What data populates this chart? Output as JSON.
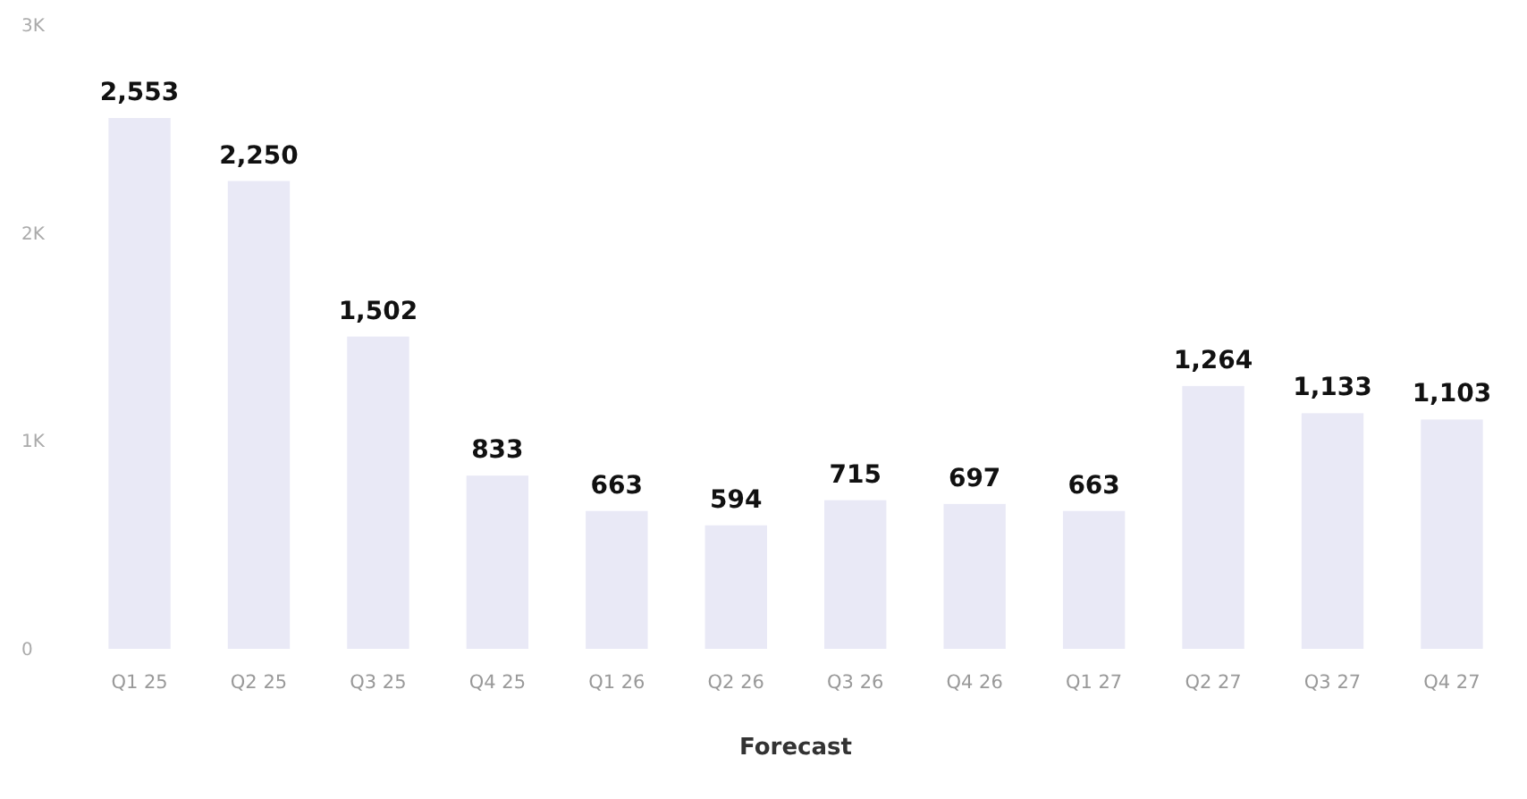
{
  "chart_data": {
    "type": "bar",
    "xlabel": "Forecast",
    "categories": [
      "Q1 25",
      "Q2 25",
      "Q3 25",
      "Q4 25",
      "Q1 26",
      "Q2 26",
      "Q3 26",
      "Q4 26",
      "Q1 27",
      "Q2 27",
      "Q3 27",
      "Q4 27"
    ],
    "values": [
      2553,
      2250,
      1502,
      833,
      663,
      594,
      715,
      697,
      663,
      1264,
      1133,
      1103
    ],
    "value_labels": [
      "2,553",
      "2,250",
      "1,502",
      "833",
      "663",
      "594",
      "715",
      "697",
      "663",
      "1,264",
      "1,133",
      "1,103"
    ],
    "color": "#e9e9f6",
    "ylim": [
      0,
      3000
    ],
    "yticks": [
      {
        "value": 0,
        "label": "0"
      },
      {
        "value": 1000,
        "label": "1K"
      },
      {
        "value": 2000,
        "label": "2K"
      },
      {
        "value": 3000,
        "label": "3K"
      }
    ],
    "grid": false
  }
}
